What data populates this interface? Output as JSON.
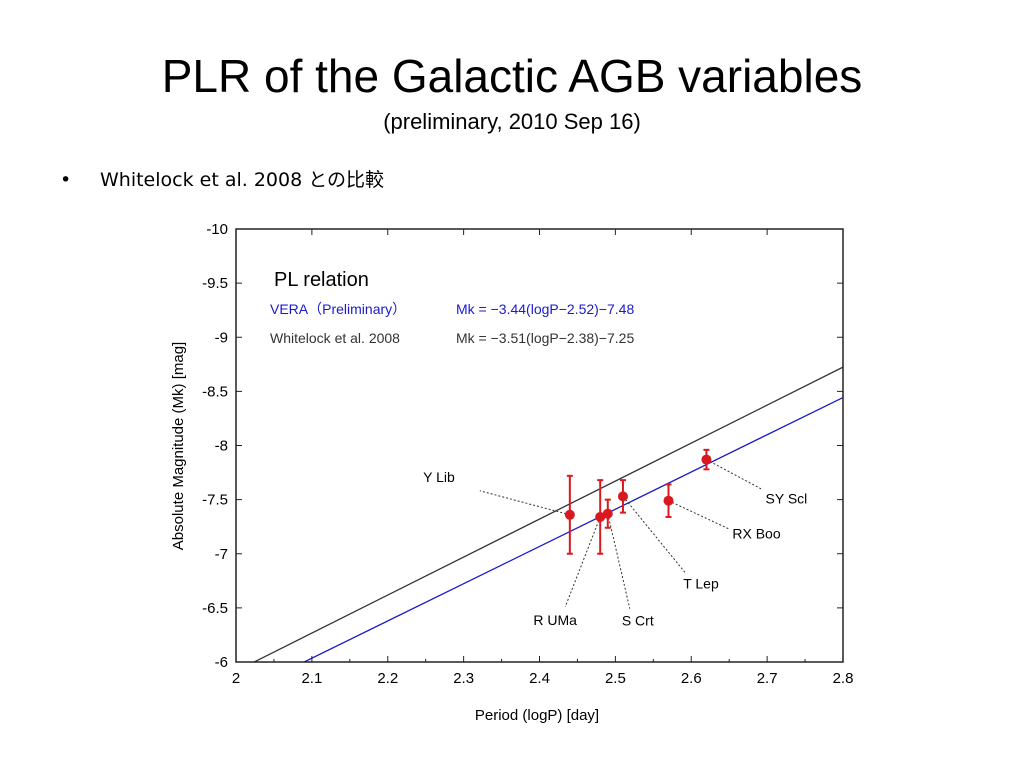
{
  "slide": {
    "title": "PLR of the Galactic AGB variables",
    "subtitle": "(preliminary,  2010 Sep 16)",
    "bullet_marker": "•",
    "bullet_text": "Whitelock et al. 2008 との比較"
  },
  "chart_data": {
    "type": "scatter",
    "xlabel": "Period (logP) [day]",
    "ylabel": "Absolute Magnitude (Mk) [mag]",
    "xlim": [
      2.0,
      2.8
    ],
    "ylim": [
      -6,
      -10
    ],
    "y_inverted": true,
    "x_ticks": [
      2.0,
      2.1,
      2.2,
      2.3,
      2.4,
      2.5,
      2.6,
      2.7,
      2.8
    ],
    "x_tick_labels": [
      "2",
      "2.1",
      "2.2",
      "2.3",
      "2.4",
      "2.5",
      "2.6",
      "2.7",
      "2.8"
    ],
    "y_ticks": [
      -10,
      -9.5,
      -9,
      -8.5,
      -8,
      -7.5,
      -7,
      -6.5,
      -6
    ],
    "y_tick_labels": [
      "-10",
      "-9.5",
      "-9",
      "-8.5",
      "-8",
      "-7.5",
      "-7",
      "-6.5",
      "-6"
    ],
    "grid": false,
    "legend_title": "PL relation",
    "lines": [
      {
        "name": "VERA（Preliminary）",
        "equation": "Mk = −3.44(logP−2.52)−7.48",
        "slope": -3.44,
        "x0": 2.52,
        "y0": -7.48,
        "color": "#1a1acc"
      },
      {
        "name": "Whitelock et al. 2008",
        "equation": "Mk = −3.51(logP−2.38)−7.25",
        "slope": -3.51,
        "x0": 2.38,
        "y0": -7.25,
        "color": "#333333"
      }
    ],
    "points_color": "#d9191f",
    "points": [
      {
        "label": "Y Lib",
        "x": 2.44,
        "y": -7.36,
        "err": 0.36
      },
      {
        "label": "R UMa",
        "x": 2.48,
        "y": -7.34,
        "err": 0.34
      },
      {
        "label": "S Crt",
        "x": 2.49,
        "y": -7.37,
        "err": 0.13
      },
      {
        "label": "T Lep",
        "x": 2.51,
        "y": -7.53,
        "err": 0.15
      },
      {
        "label": "RX Boo",
        "x": 2.57,
        "y": -7.49,
        "err": 0.15
      },
      {
        "label": "SY Scl",
        "x": 2.62,
        "y": -7.87,
        "err": 0.09
      }
    ]
  }
}
